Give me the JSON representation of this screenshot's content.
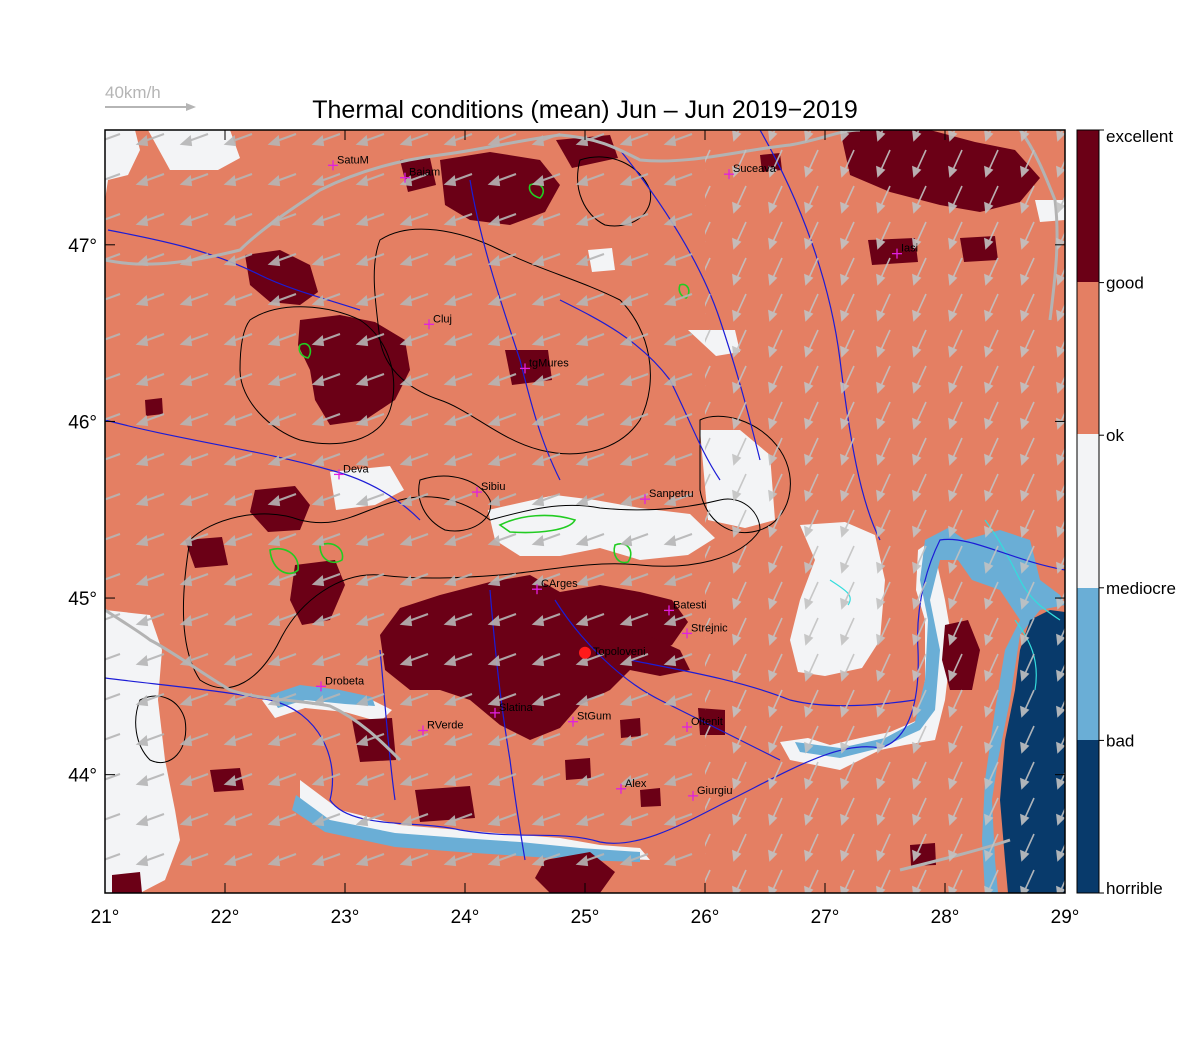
{
  "title": "Thermal conditions (mean) Jun – Jun  2019−2019",
  "wind_legend": {
    "label": "40km/h",
    "color": "#b5b5b5"
  },
  "colors": {
    "horrible": "#083a6b",
    "bad": "#6aaed6",
    "mediocre": "#f3f4f6",
    "ok": "#e47f63",
    "excellent": "#6b0016",
    "river": "#1c1cd6",
    "border": "#b3b3b3",
    "contour": "#000000",
    "contour_green": "#22cc22",
    "city_marker": "#e020e0",
    "highlight_city": "#ff1a1a"
  },
  "map": {
    "lon_range": [
      21,
      29
    ],
    "lat_range": [
      43.33,
      47.65
    ],
    "x_ticks": [
      {
        "value": 21,
        "label": "21°"
      },
      {
        "value": 22,
        "label": "22°"
      },
      {
        "value": 23,
        "label": "23°"
      },
      {
        "value": 24,
        "label": "24°"
      },
      {
        "value": 25,
        "label": "25°"
      },
      {
        "value": 26,
        "label": "26°"
      },
      {
        "value": 27,
        "label": "27°"
      },
      {
        "value": 28,
        "label": "28°"
      },
      {
        "value": 29,
        "label": "29°"
      }
    ],
    "y_ticks": [
      {
        "value": 44,
        "label": "44°"
      },
      {
        "value": 45,
        "label": "45°"
      },
      {
        "value": 46,
        "label": "46°"
      },
      {
        "value": 47,
        "label": "47°"
      }
    ]
  },
  "colorbar": {
    "labels": [
      "excellent",
      "good",
      "ok",
      "mediocre",
      "bad",
      "horrible"
    ]
  },
  "cities": [
    {
      "name": "SatuM",
      "lon": 22.9,
      "lat": 47.45
    },
    {
      "name": "Baiam",
      "lon": 23.5,
      "lat": 47.38
    },
    {
      "name": "Suceava",
      "lon": 26.2,
      "lat": 47.4
    },
    {
      "name": "Iasi",
      "lon": 27.6,
      "lat": 46.95
    },
    {
      "name": "Cluj",
      "lon": 23.7,
      "lat": 46.55
    },
    {
      "name": "tgMures",
      "lon": 24.5,
      "lat": 46.3
    },
    {
      "name": "Deva",
      "lon": 22.95,
      "lat": 45.7
    },
    {
      "name": "Sibiu",
      "lon": 24.1,
      "lat": 45.6
    },
    {
      "name": "Sanpetru",
      "lon": 25.5,
      "lat": 45.56
    },
    {
      "name": "CArges",
      "lon": 24.6,
      "lat": 45.05
    },
    {
      "name": "Batesti",
      "lon": 25.7,
      "lat": 44.93
    },
    {
      "name": "Strejnic",
      "lon": 25.85,
      "lat": 44.8
    },
    {
      "name": "Drobeta",
      "lon": 22.8,
      "lat": 44.5
    },
    {
      "name": "Slatina",
      "lon": 24.25,
      "lat": 44.35
    },
    {
      "name": "StGum",
      "lon": 24.9,
      "lat": 44.3
    },
    {
      "name": "Oltenit",
      "lon": 25.85,
      "lat": 44.27
    },
    {
      "name": "RVerde",
      "lon": 23.65,
      "lat": 44.25
    },
    {
      "name": "Alex",
      "lon": 25.3,
      "lat": 43.92
    },
    {
      "name": "Giurgiu",
      "lon": 25.9,
      "lat": 43.88
    }
  ],
  "highlight_city": {
    "name": "Topoloveni",
    "lon": 25.0,
    "lat": 44.69
  }
}
